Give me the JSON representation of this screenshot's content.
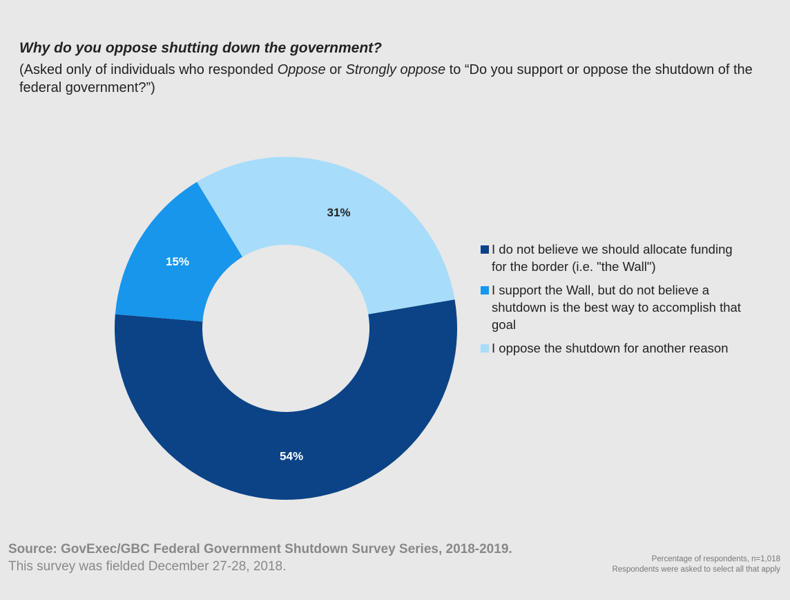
{
  "chart_data": {
    "type": "pie",
    "variant": "donut",
    "title": "Why do you oppose shutting down the government?",
    "subtitle_parts": [
      {
        "text": "(Asked only of individuals who responded ",
        "italic": false
      },
      {
        "text": "Oppose",
        "italic": true
      },
      {
        "text": " or ",
        "italic": false
      },
      {
        "text": "Strongly oppose",
        "italic": true
      },
      {
        "text": " to “Do you support or oppose the shutdown of the federal government?”)",
        "italic": false
      }
    ],
    "slices": [
      {
        "label": "I do not believe we should allocate funding for the border (i.e. \"the Wall\")",
        "value": 54,
        "display": "54%",
        "color": "#0b4386",
        "label_color": "#ffffff"
      },
      {
        "label": "I support the Wall, but do not believe a shutdown is the best way to accomplish that goal",
        "value": 15,
        "display": "15%",
        "color": "#1896eb",
        "label_color": "#ffffff"
      },
      {
        "label": "I oppose the shutdown for another reason",
        "value": 31,
        "display": "31%",
        "color": "#a7dcfa",
        "label_color": "#222222"
      }
    ],
    "start_angle_deg": 80.3,
    "legend_position": "right"
  },
  "footer": {
    "source": "Source: GovExec/GBC Federal Government Shutdown Survey Series, 2018-2019.",
    "fielded": "This survey was fielded December 27-28, 2018.",
    "note1": "Percentage of respondents, n=1,018",
    "note2": "Respondents were asked to select all that apply"
  }
}
